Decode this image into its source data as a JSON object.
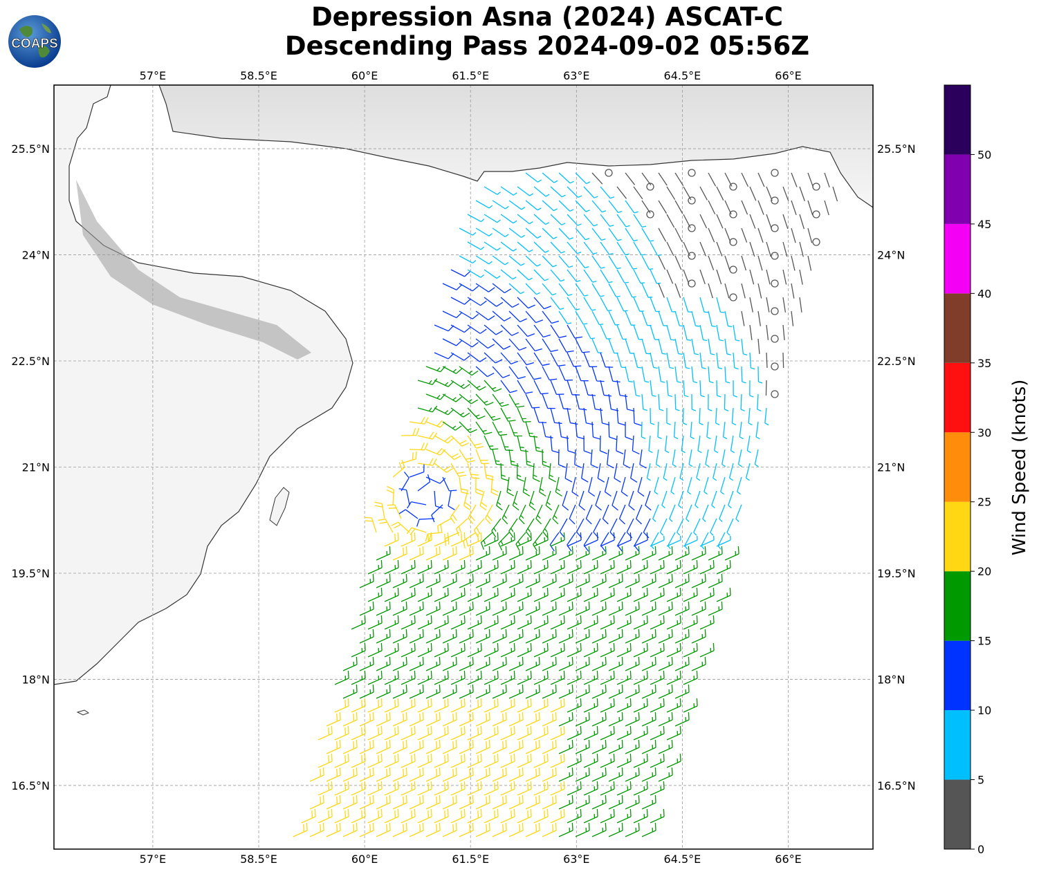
{
  "header": {
    "title_line1": "Depression Asna (2024) ASCAT-C",
    "title_line2": "Descending Pass 2024-09-02 05:56Z"
  },
  "logo": {
    "text": "COAPS",
    "icon": "globe-icon"
  },
  "map": {
    "projection": "plate-carree",
    "lon_range": [
      55.6,
      67.2
    ],
    "lat_range": [
      15.6,
      26.4
    ],
    "lon_ticks": [
      {
        "value": 57,
        "label": "57°E"
      },
      {
        "value": 58.5,
        "label": "58.5°E"
      },
      {
        "value": 60,
        "label": "60°E"
      },
      {
        "value": 61.5,
        "label": "61.5°E"
      },
      {
        "value": 63,
        "label": "63°E"
      },
      {
        "value": 64.5,
        "label": "64.5°E"
      },
      {
        "value": 66,
        "label": "66°E"
      }
    ],
    "lat_ticks": [
      {
        "value": 25.5,
        "label": "25.5°N"
      },
      {
        "value": 24,
        "label": "24°N"
      },
      {
        "value": 22.5,
        "label": "22.5°N"
      },
      {
        "value": 21,
        "label": "21°N"
      },
      {
        "value": 19.5,
        "label": "19.5°N"
      },
      {
        "value": 18,
        "label": "18°N"
      },
      {
        "value": 16.5,
        "label": "16.5°N"
      }
    ],
    "gridlines": true,
    "storm_center": {
      "lon": 60.85,
      "lat": 20.6
    }
  },
  "colorbar": {
    "title": "Wind Speed (knots)",
    "bins": [
      {
        "min": 0,
        "max": 5,
        "color": "#555555"
      },
      {
        "min": 5,
        "max": 10,
        "color": "#00bfff"
      },
      {
        "min": 10,
        "max": 15,
        "color": "#0033ff"
      },
      {
        "min": 15,
        "max": 20,
        "color": "#009900"
      },
      {
        "min": 20,
        "max": 25,
        "color": "#ffd712"
      },
      {
        "min": 25,
        "max": 30,
        "color": "#ff8c0a"
      },
      {
        "min": 30,
        "max": 35,
        "color": "#ff1010"
      },
      {
        "min": 35,
        "max": 40,
        "color": "#7f3d2a"
      },
      {
        "min": 40,
        "max": 45,
        "color": "#f400f4"
      },
      {
        "min": 45,
        "max": 50,
        "color": "#8000b0"
      },
      {
        "min": 50,
        "max": 55,
        "color": "#2a005c"
      }
    ],
    "tick_labels": [
      "0",
      "5",
      "10",
      "15",
      "20",
      "25",
      "30",
      "35",
      "40",
      "45",
      "50"
    ]
  },
  "swath": {
    "corners": [
      {
        "lon": 61.5,
        "lat": 25.1
      },
      {
        "lon": 66.8,
        "lat": 25.5
      },
      {
        "lon": 64.0,
        "lat": 15.6
      },
      {
        "lon": 58.9,
        "lat": 15.6
      }
    ]
  }
}
